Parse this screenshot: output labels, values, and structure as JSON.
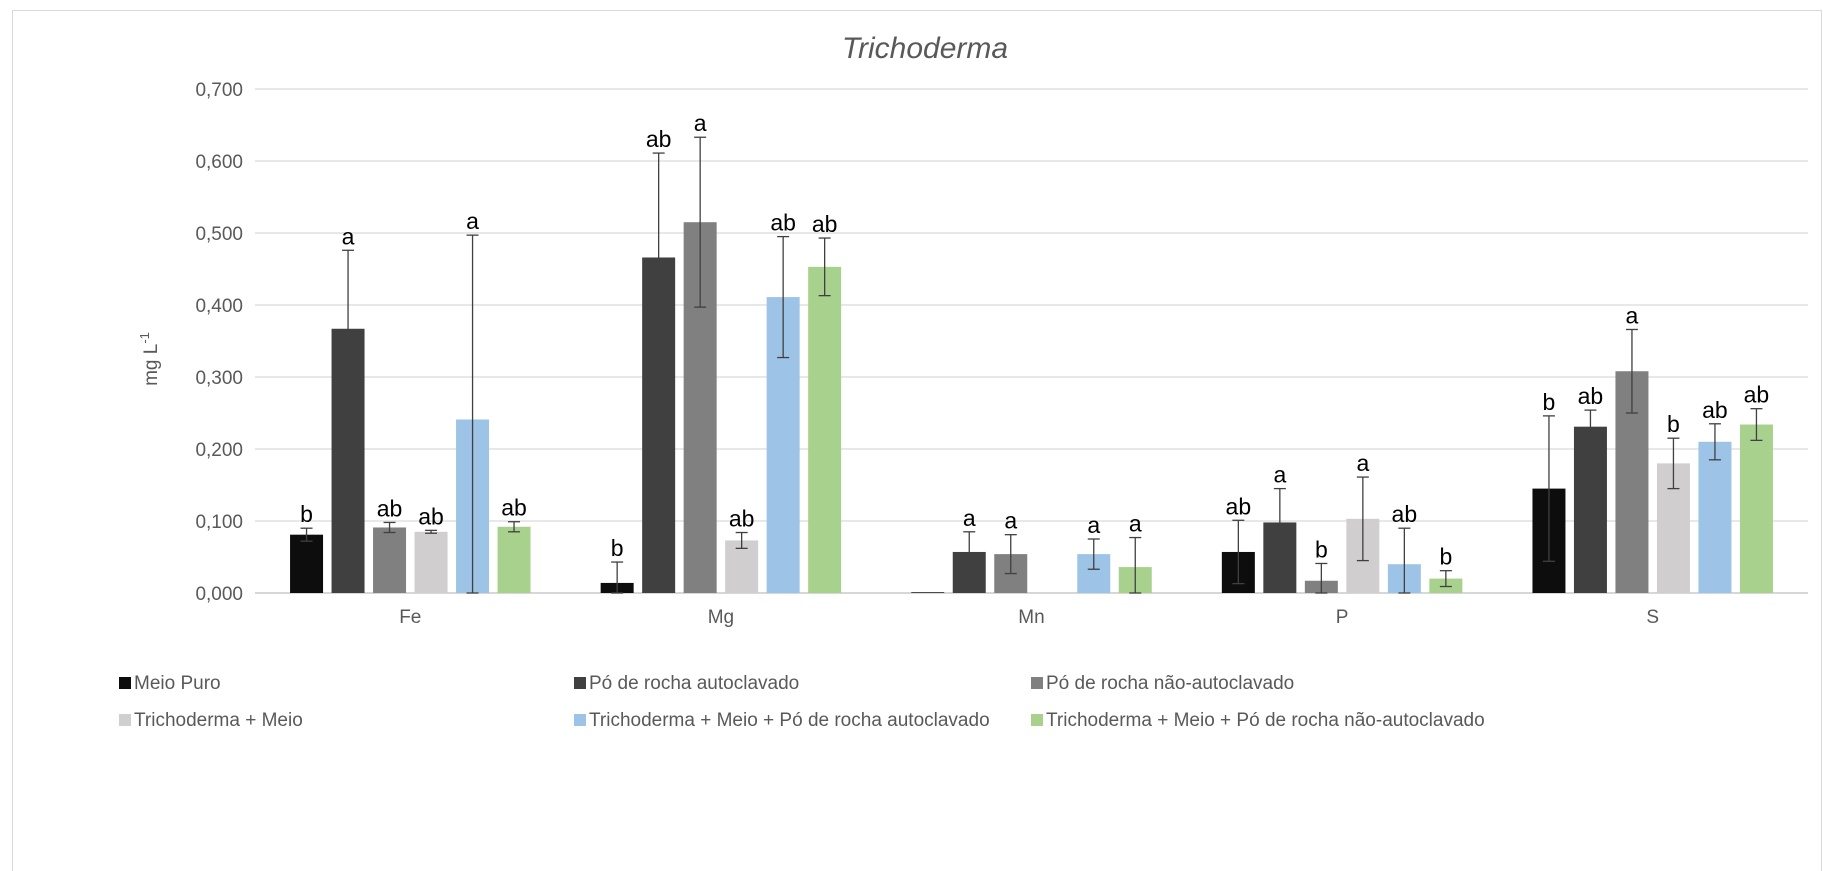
{
  "chart_data": {
    "type": "bar",
    "title": "Trichoderma",
    "ylabel": "mg L",
    "ylabel_superscript": "-1",
    "ylim": [
      0,
      0.7
    ],
    "yticks": [
      0,
      0.1,
      0.2,
      0.3,
      0.4,
      0.5,
      0.6,
      0.7
    ],
    "ytick_labels": [
      "0,000",
      "0,100",
      "0,200",
      "0,300",
      "0,400",
      "0,500",
      "0,600",
      "0,700"
    ],
    "grid": true,
    "legend_position": "bottom",
    "categories": [
      "Fe",
      "Mg",
      "Mn",
      "P",
      "S"
    ],
    "series": [
      {
        "name": "Meio Puro",
        "color": "#0d0d0d",
        "values": [
          0.081,
          0.014,
          0.001,
          0.057,
          0.145
        ],
        "errors": [
          0.009,
          0.029,
          0.0,
          0.044,
          0.101
        ],
        "letters": [
          "b",
          "b",
          "",
          "ab",
          "b"
        ]
      },
      {
        "name": "Pó de rocha autoclavado",
        "color": "#404040",
        "values": [
          0.367,
          0.466,
          0.057,
          0.098,
          0.231
        ],
        "errors": [
          0.109,
          0.145,
          0.028,
          0.047,
          0.023
        ],
        "letters": [
          "a",
          "ab",
          "a",
          "a",
          "ab"
        ]
      },
      {
        "name": "Pó de rocha não-autoclavado",
        "color": "#808080",
        "values": [
          0.091,
          0.515,
          0.054,
          0.017,
          0.308
        ],
        "errors": [
          0.007,
          0.118,
          0.027,
          0.024,
          0.058
        ],
        "letters": [
          "ab",
          "a",
          "a",
          "b",
          "a"
        ]
      },
      {
        "name": "Trichoderma + Meio",
        "color": "#d0cece",
        "values": [
          0.085,
          0.073,
          0.001,
          0.103,
          0.18
        ],
        "errors": [
          0.002,
          0.011,
          0.0,
          0.058,
          0.035
        ],
        "letters": [
          "ab",
          "ab",
          "",
          "a",
          "b"
        ]
      },
      {
        "name": "Trichoderma + Meio + Pó de rocha autoclavado",
        "color": "#9dc3e6",
        "values": [
          0.241,
          0.411,
          0.054,
          0.04,
          0.21
        ],
        "errors": [
          0.256,
          0.084,
          0.021,
          0.05,
          0.025
        ],
        "letters": [
          "a",
          "ab",
          "a",
          "ab",
          "ab"
        ]
      },
      {
        "name": "Trichoderma + Meio + Pó de rocha não-autoclavado",
        "color": "#a9d18e",
        "values": [
          0.092,
          0.453,
          0.036,
          0.02,
          0.234
        ],
        "errors": [
          0.007,
          0.04,
          0.041,
          0.011,
          0.022
        ],
        "letters": [
          "ab",
          "ab",
          "a",
          "b",
          "ab"
        ]
      }
    ]
  }
}
